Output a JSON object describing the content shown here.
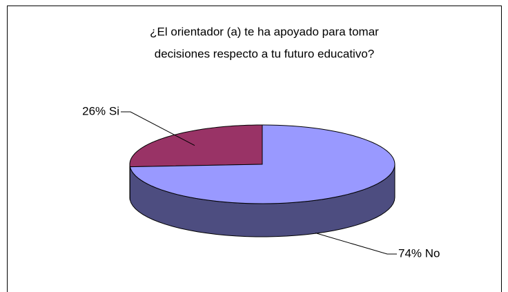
{
  "chart_data": {
    "type": "pie",
    "title": [
      "¿El orientador (a) te ha apoyado para tomar",
      "decisiones respecto a tu futuro educativo?"
    ],
    "categories": [
      "Si",
      "No"
    ],
    "values": [
      26,
      74
    ],
    "value_labels": [
      "26% Si",
      "74% No"
    ],
    "colors": [
      "#993366",
      "#9999ff"
    ],
    "side_colors": [
      "#6b2447",
      "#4d4d80"
    ],
    "three_d": true
  }
}
